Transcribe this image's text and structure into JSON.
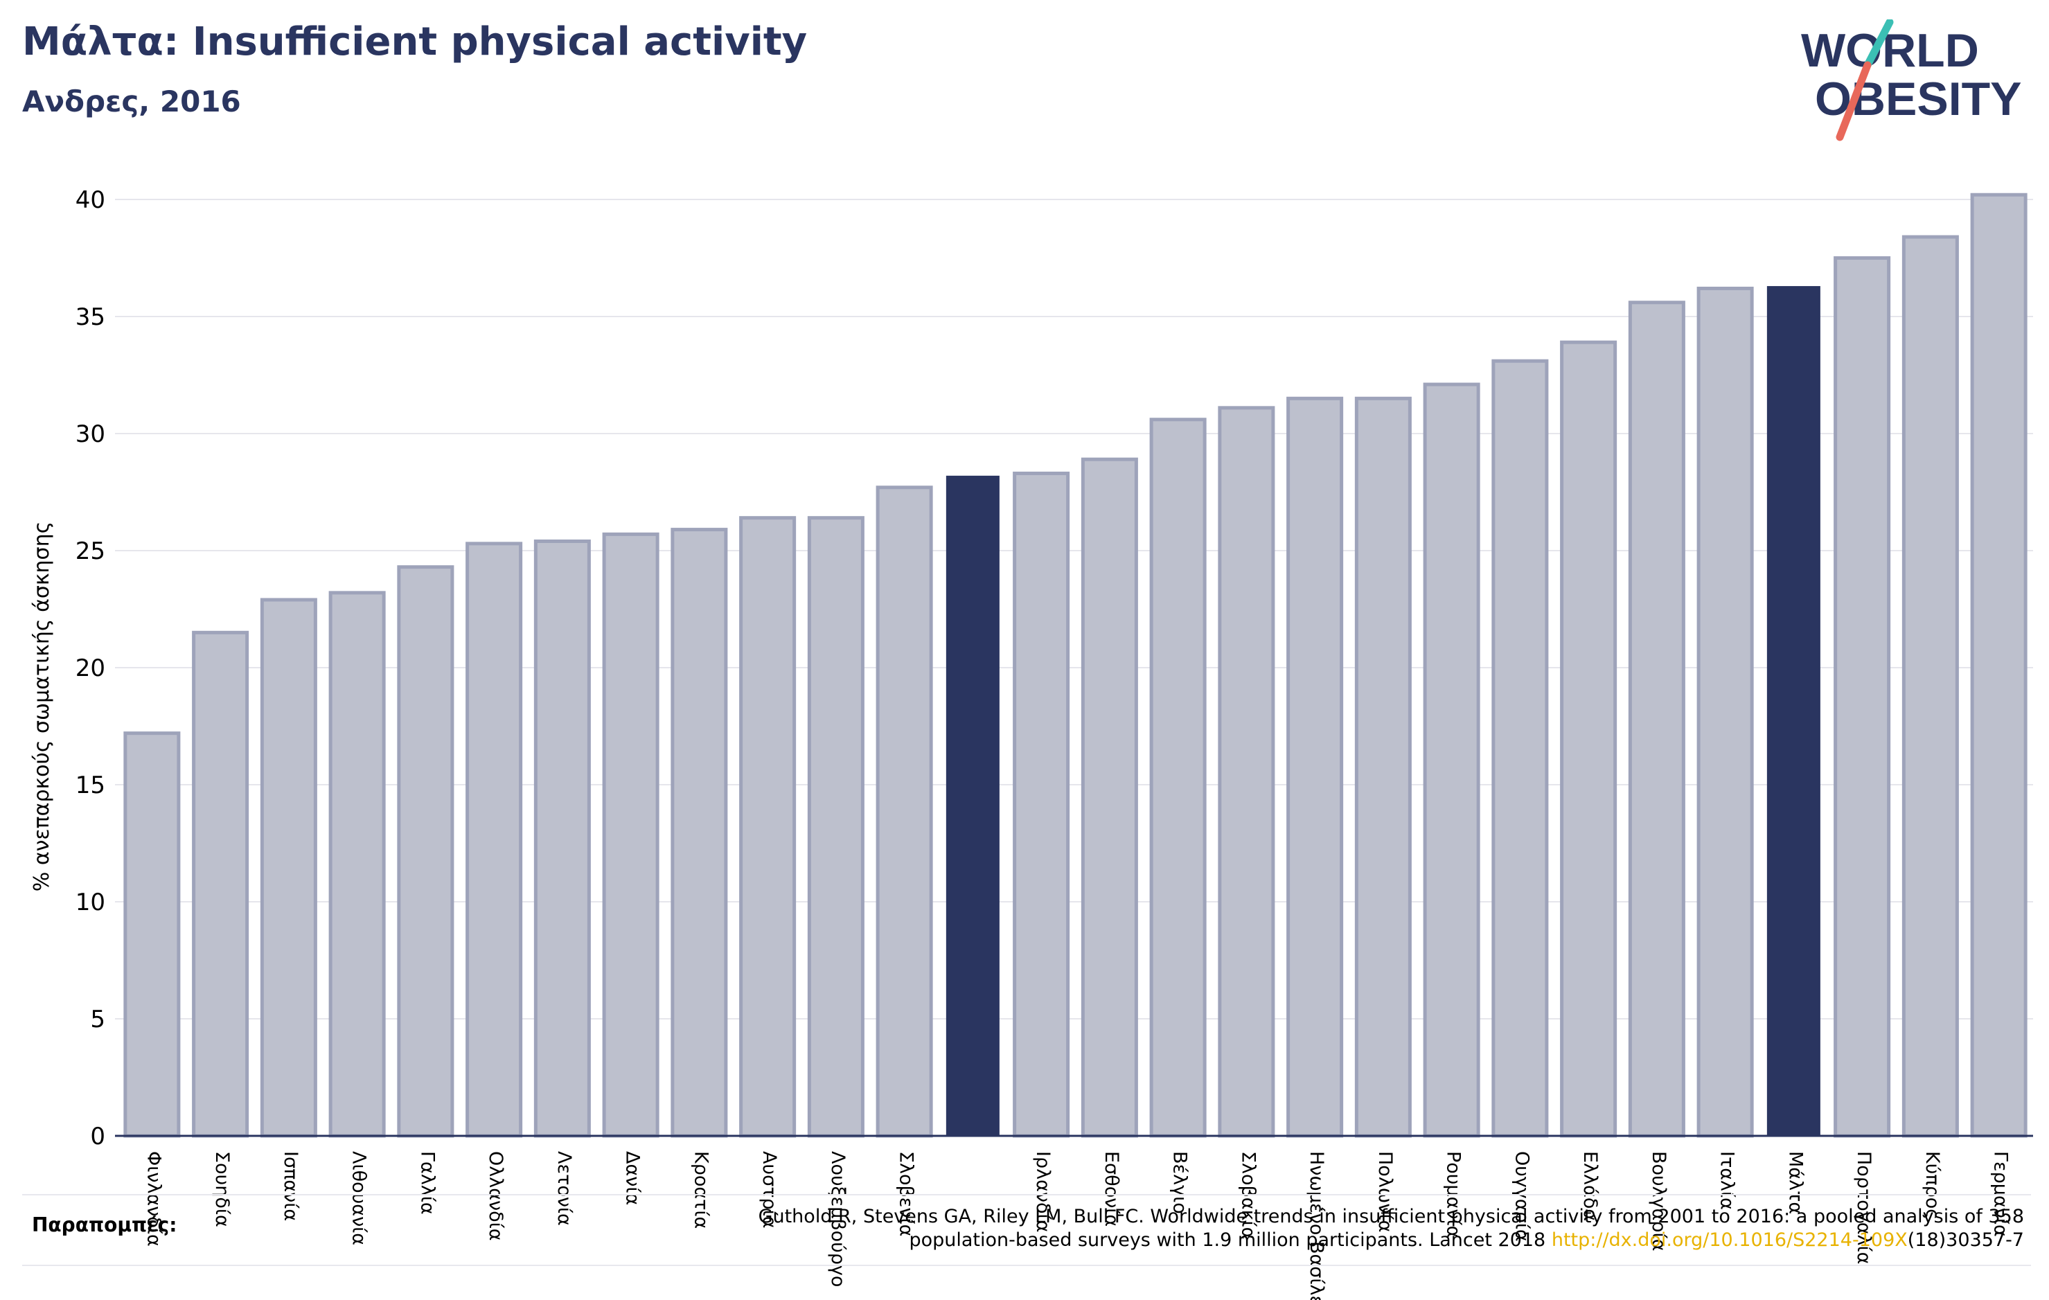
{
  "header": {
    "title": "Μάλτα: Insufficient physical activity",
    "subtitle": "Ανδρες, 2016"
  },
  "logo": {
    "line1": "WORLD",
    "line2": "OBESITY",
    "colors": {
      "text": "#2a3560",
      "slash_top": "#3bbfb4",
      "slash_bottom": "#e8685a"
    }
  },
  "chart_data": {
    "type": "bar",
    "ylabel": "% ανεπαρκούς σωματικής άσκησης",
    "xlabel": "",
    "ylim": [
      0,
      40
    ],
    "yticks": [
      0,
      5,
      10,
      15,
      20,
      25,
      30,
      35,
      40
    ],
    "grid": true,
    "categories": [
      "Φινλανδία",
      "Σουηδία",
      "Ισπανία",
      "Λιθουανία",
      "Γαλλία",
      "Ολλανδία",
      "Λετονία",
      "Δανία",
      "Κροατία",
      "Αυστρία",
      "Λουξεμβούργο",
      "Σλοβενία",
      "",
      "Ιρλανδία",
      "Εσθονία",
      "Βέλγιο",
      "Σλοβακία",
      "Ηνωμένο Βασίλειο",
      "Πολωνία",
      "Ρουμανία",
      "Ουγγαρία",
      "Ελλάδα",
      "Βουλγαρία",
      "Ιταλία",
      "Μάλτα",
      "Πορτογαλία",
      "Κύπρος",
      "Γερμανία"
    ],
    "values": [
      17.2,
      21.5,
      22.9,
      23.2,
      24.3,
      25.3,
      25.4,
      25.7,
      25.9,
      26.4,
      26.4,
      27.7,
      28.2,
      28.3,
      28.9,
      30.6,
      31.1,
      31.5,
      31.5,
      32.1,
      33.1,
      33.9,
      35.6,
      36.2,
      36.3,
      37.5,
      38.4,
      40.2
    ],
    "highlighted": [
      12,
      24
    ],
    "colors": {
      "bar": "#bdc0cd",
      "bar_edge": "#9ea3ba",
      "highlight": "#2a3560",
      "grid": "#e6e6ec",
      "axis": "#2a3560"
    }
  },
  "footer": {
    "label": "Παραπομπές:",
    "line1": "Guthold R, Stevens GA, Riley LM, Bull FC. Worldwide trends in insufficient physical activity from 2001 to 2016: a pooled analysis of 358",
    "line2_prefix": "population-based surveys with 1.9 million participants. Lancet 2018 ",
    "link": "http://dx.doi.org/10.1016/S2214-109X",
    "line2_suffix": "(18)30357-7"
  }
}
